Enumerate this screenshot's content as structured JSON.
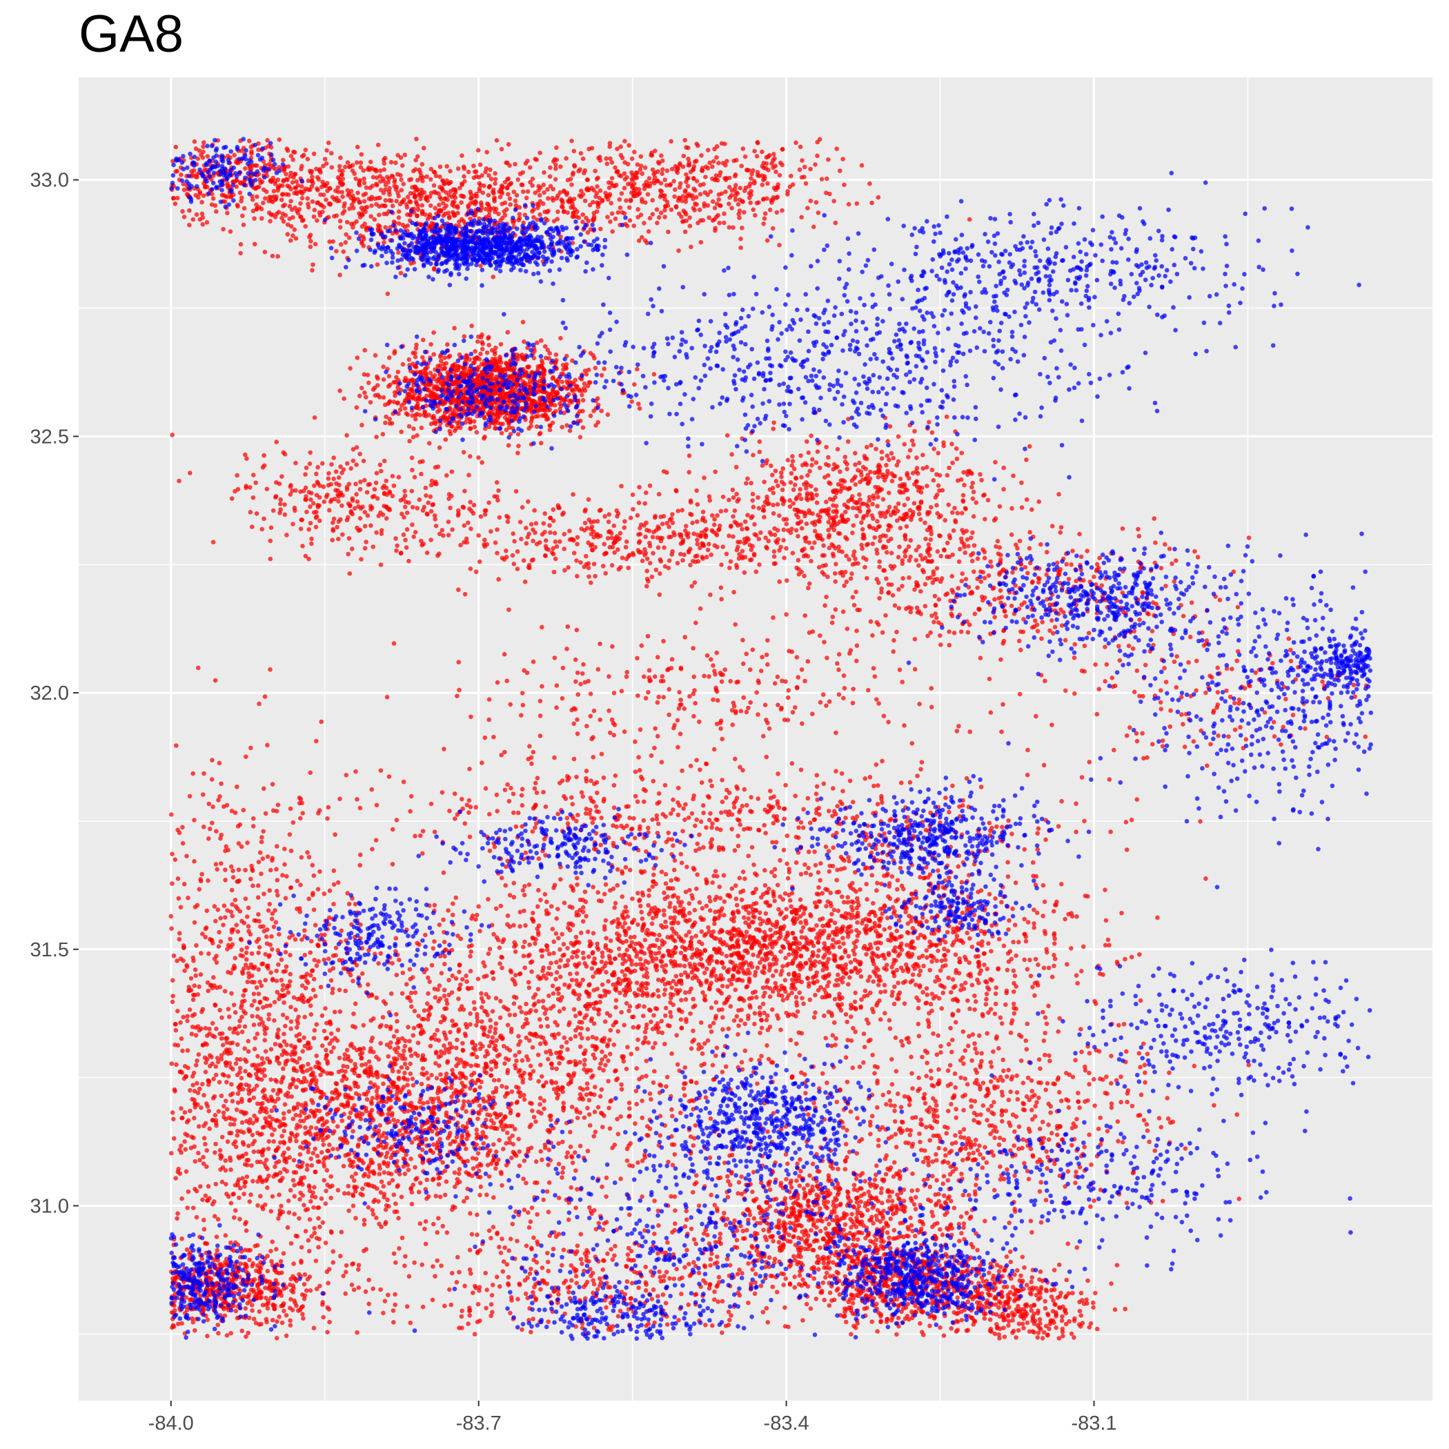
{
  "chart_data": {
    "type": "scatter",
    "title": "GA8",
    "xlabel": "",
    "ylabel": "",
    "xlim": [
      -84.09,
      -82.77
    ],
    "ylim": [
      30.62,
      33.2
    ],
    "x_ticks": [
      -84.0,
      -83.7,
      -83.4,
      -83.1
    ],
    "x_tick_labels": [
      "-84.0",
      "-83.7",
      "-83.4",
      "-83.1"
    ],
    "y_ticks": [
      31.0,
      31.5,
      32.0,
      32.5,
      33.0
    ],
    "y_tick_labels": [
      "31.0",
      "31.5",
      "32.0",
      "32.5",
      "33.0"
    ],
    "grid": true,
    "legend": "none",
    "colors": {
      "panel": "#EBEBEB",
      "grid": "#FFFFFF",
      "red": "#FF0000",
      "blue": "#0000FF"
    },
    "series": [
      {
        "color": "#FF0000",
        "clusters": [
          {
            "x": -83.69,
            "y": 32.59,
            "sx": 0.05,
            "sy": 0.04,
            "n": 1400
          },
          {
            "x": -83.75,
            "y": 32.94,
            "sx": 0.08,
            "sy": 0.05,
            "n": 700
          },
          {
            "x": -83.92,
            "y": 33.0,
            "sx": 0.07,
            "sy": 0.04,
            "n": 500
          },
          {
            "x": -83.52,
            "y": 32.99,
            "sx": 0.08,
            "sy": 0.05,
            "n": 600
          },
          {
            "x": -83.32,
            "y": 32.38,
            "sx": 0.07,
            "sy": 0.06,
            "n": 600
          },
          {
            "x": -83.53,
            "y": 32.3,
            "sx": 0.12,
            "sy": 0.04,
            "n": 500
          },
          {
            "x": -83.82,
            "y": 32.38,
            "sx": 0.06,
            "sy": 0.05,
            "n": 300
          },
          {
            "x": -83.43,
            "y": 31.5,
            "sx": 0.12,
            "sy": 0.07,
            "n": 1500
          },
          {
            "x": -83.8,
            "y": 31.17,
            "sx": 0.1,
            "sy": 0.1,
            "n": 1300
          },
          {
            "x": -83.93,
            "y": 31.35,
            "sx": 0.07,
            "sy": 0.25,
            "n": 1100
          },
          {
            "x": -83.63,
            "y": 31.33,
            "sx": 0.12,
            "sy": 0.15,
            "n": 1100
          },
          {
            "x": -83.35,
            "y": 30.96,
            "sx": 0.07,
            "sy": 0.07,
            "n": 900
          },
          {
            "x": -83.95,
            "y": 30.84,
            "sx": 0.05,
            "sy": 0.04,
            "n": 600
          },
          {
            "x": -83.28,
            "y": 30.84,
            "sx": 0.05,
            "sy": 0.04,
            "n": 500
          },
          {
            "x": -83.17,
            "y": 30.8,
            "sx": 0.04,
            "sy": 0.04,
            "n": 300
          },
          {
            "x": -83.2,
            "y": 31.17,
            "sx": 0.08,
            "sy": 0.08,
            "n": 500
          },
          {
            "x": -83.25,
            "y": 31.5,
            "sx": 0.08,
            "sy": 0.15,
            "n": 500
          },
          {
            "x": -83.5,
            "y": 31.75,
            "sx": 0.15,
            "sy": 0.06,
            "n": 500
          },
          {
            "x": -83.2,
            "y": 32.2,
            "sx": 0.1,
            "sy": 0.06,
            "n": 400
          },
          {
            "x": -83.5,
            "y": 32.0,
            "sx": 0.12,
            "sy": 0.06,
            "n": 250
          },
          {
            "x": -83.0,
            "y": 32.0,
            "sx": 0.08,
            "sy": 0.08,
            "n": 150
          },
          {
            "x": -83.6,
            "y": 30.85,
            "sx": 0.1,
            "sy": 0.06,
            "n": 400
          }
        ]
      },
      {
        "color": "#0000FF",
        "clusters": [
          {
            "x": -83.7,
            "y": 32.87,
            "sx": 0.05,
            "sy": 0.025,
            "n": 900
          },
          {
            "x": -83.95,
            "y": 33.02,
            "sx": 0.03,
            "sy": 0.03,
            "n": 150
          },
          {
            "x": -83.35,
            "y": 32.65,
            "sx": 0.12,
            "sy": 0.08,
            "n": 600
          },
          {
            "x": -83.15,
            "y": 32.82,
            "sx": 0.1,
            "sy": 0.06,
            "n": 400
          },
          {
            "x": -83.1,
            "y": 32.18,
            "sx": 0.06,
            "sy": 0.05,
            "n": 400
          },
          {
            "x": -82.9,
            "y": 32.0,
            "sx": 0.08,
            "sy": 0.12,
            "n": 500
          },
          {
            "x": -82.84,
            "y": 32.06,
            "sx": 0.03,
            "sy": 0.03,
            "n": 200
          },
          {
            "x": -83.26,
            "y": 31.72,
            "sx": 0.05,
            "sy": 0.04,
            "n": 400
          },
          {
            "x": -83.23,
            "y": 31.58,
            "sx": 0.03,
            "sy": 0.03,
            "n": 150
          },
          {
            "x": -83.42,
            "y": 31.16,
            "sx": 0.05,
            "sy": 0.06,
            "n": 500
          },
          {
            "x": -83.27,
            "y": 30.86,
            "sx": 0.04,
            "sy": 0.04,
            "n": 500
          },
          {
            "x": -83.98,
            "y": 30.85,
            "sx": 0.035,
            "sy": 0.04,
            "n": 400
          },
          {
            "x": -82.95,
            "y": 31.34,
            "sx": 0.08,
            "sy": 0.06,
            "n": 300
          },
          {
            "x": -83.1,
            "y": 31.05,
            "sx": 0.08,
            "sy": 0.06,
            "n": 250
          },
          {
            "x": -83.8,
            "y": 31.53,
            "sx": 0.04,
            "sy": 0.04,
            "n": 200
          },
          {
            "x": -83.62,
            "y": 31.7,
            "sx": 0.05,
            "sy": 0.03,
            "n": 200
          },
          {
            "x": -83.5,
            "y": 30.95,
            "sx": 0.1,
            "sy": 0.1,
            "n": 400
          },
          {
            "x": -83.77,
            "y": 31.15,
            "sx": 0.05,
            "sy": 0.05,
            "n": 200
          },
          {
            "x": -83.56,
            "y": 30.78,
            "sx": 0.05,
            "sy": 0.03,
            "n": 200
          },
          {
            "x": -83.69,
            "y": 32.59,
            "sx": 0.05,
            "sy": 0.04,
            "n": 300
          }
        ]
      }
    ]
  }
}
